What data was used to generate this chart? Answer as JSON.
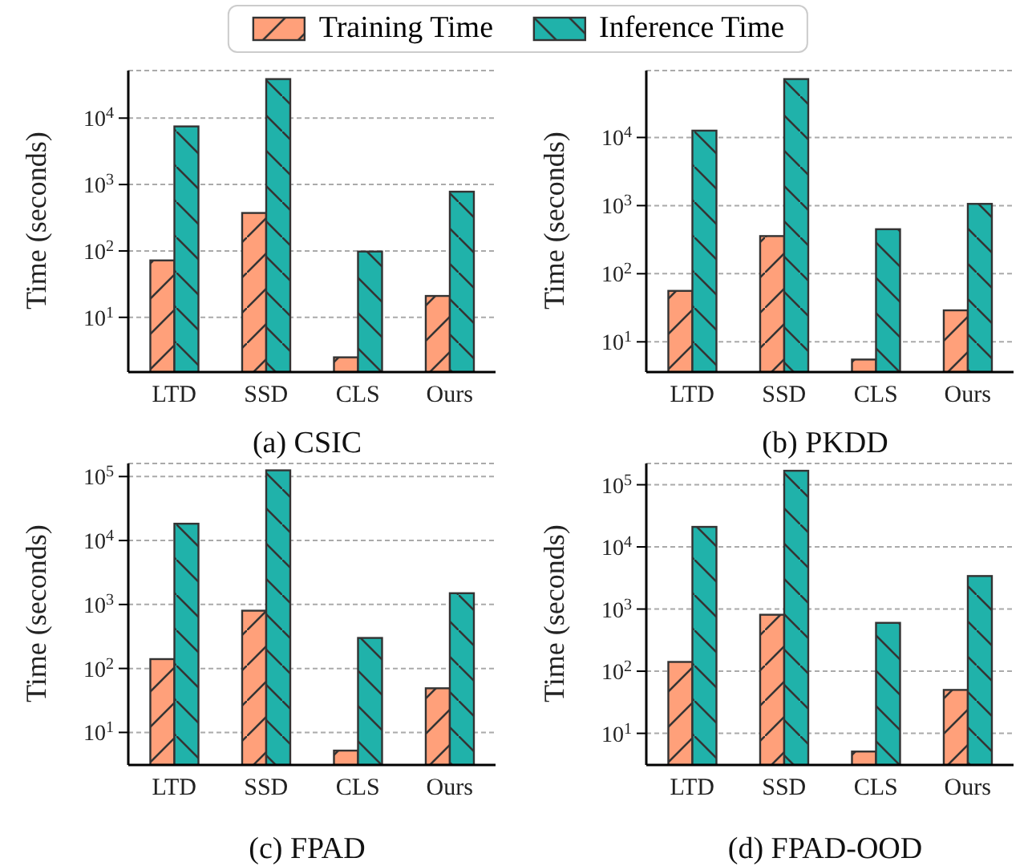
{
  "chart_data": [
    {
      "type": "bar",
      "title": "(a) CSIC",
      "ylabel": "Time (seconds)",
      "categories": [
        "LTD",
        "SSD",
        "CLS",
        "Ours"
      ],
      "legend": "top",
      "log": "y",
      "grid": "y",
      "series": [
        {
          "name": "Training Time",
          "color": "#ffa07a",
          "values": [
            72,
            373,
            2.5,
            21
          ]
        },
        {
          "name": "Inference Time",
          "color": "#20b2aa",
          "values": [
            7500,
            38700,
            98,
            780
          ]
        }
      ],
      "ylim": [
        1.5,
        52000
      ],
      "yticks": [
        {
          "value": 10,
          "label": "10$^{1}$"
        },
        {
          "value": 100,
          "label": "10$^{2}$"
        },
        {
          "value": 1000,
          "label": "10$^{3}$"
        },
        {
          "value": 10000,
          "label": "10$^{4}$"
        }
      ]
    },
    {
      "type": "bar",
      "title": "(b) PKDD",
      "ylabel": "Time (seconds)",
      "categories": [
        "LTD",
        "SSD",
        "CLS",
        "Ours"
      ],
      "log": "y",
      "grid": "y",
      "series": [
        {
          "color": "#ffa07a",
          "values": [
            56,
            357,
            5.5,
            29
          ]
        },
        {
          "color": "#20b2aa",
          "values": [
            12600,
            72000,
            450,
            1060
          ]
        }
      ],
      "ylim": [
        3.6,
        96000
      ],
      "yticks": [
        {
          "value": 10,
          "label": "10$^{1}$"
        },
        {
          "value": 100,
          "label": "10$^{2}$"
        },
        {
          "value": 1000,
          "label": "10$^{3}$"
        },
        {
          "value": 10000,
          "label": "10$^{4}$"
        }
      ]
    },
    {
      "type": "bar",
      "title": "(c) FPAD",
      "ylabel": "Time (seconds)",
      "categories": [
        "LTD",
        "SSD",
        "CLS",
        "Ours"
      ],
      "log": "y",
      "grid": "y",
      "series": [
        {
          "color": "#ffa07a",
          "values": [
            140,
            800,
            5.2,
            49
          ]
        },
        {
          "color": "#20b2aa",
          "values": [
            18300,
            125000,
            300,
            1500
          ]
        }
      ],
      "ylim": [
        3.1,
        160000
      ],
      "yticks": [
        {
          "value": 10,
          "label": "10$^{1}$"
        },
        {
          "value": 100,
          "label": "10$^{2}$"
        },
        {
          "value": 1000,
          "label": "10$^{3}$"
        },
        {
          "value": 10000,
          "label": "10$^{4}$"
        },
        {
          "value": 100000,
          "label": "10$^{5}$"
        }
      ]
    },
    {
      "type": "bar",
      "title": "(d) FPAD-OOD",
      "ylabel": "Time (seconds)",
      "categories": [
        "LTD",
        "SSD",
        "CLS",
        "Ours"
      ],
      "log": "y",
      "grid": "y",
      "series": [
        {
          "color": "#ffa07a",
          "values": [
            141,
            810,
            5.1,
            50
          ]
        },
        {
          "color": "#20b2aa",
          "values": [
            21000,
            168000,
            600,
            3400
          ]
        }
      ],
      "ylim": [
        3.1,
        220000
      ],
      "yticks": [
        {
          "value": 10,
          "label": "10$^{1}$"
        },
        {
          "value": 100,
          "label": "10$^{2}$"
        },
        {
          "value": 1000,
          "label": "10$^{3}$"
        },
        {
          "value": 10000,
          "label": "10$^{4}$"
        },
        {
          "value": 100000,
          "label": "10$^{5}$"
        }
      ]
    }
  ]
}
